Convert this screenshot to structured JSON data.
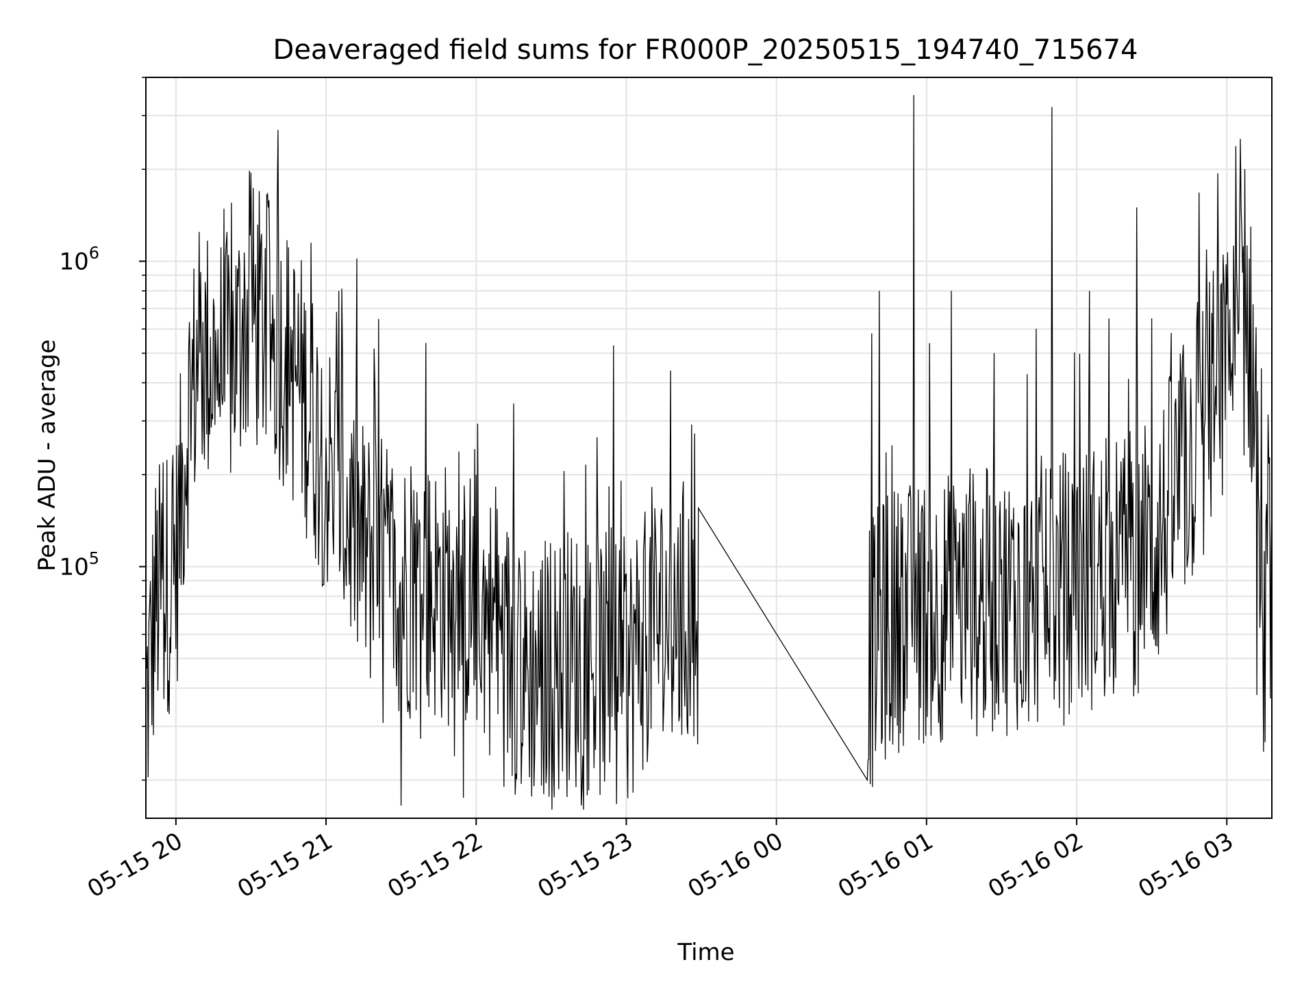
{
  "chart_data": {
    "type": "line",
    "title": "Deaveraged field sums for FR000P_20250515_194740_715674",
    "xlabel": "Time",
    "ylabel": "Peak ADU - average",
    "yscale": "log",
    "grid": true,
    "line_color": "#000000",
    "xlim": [
      "2025-05-15 19:48",
      "2025-05-16 03:18"
    ],
    "ylim": [
      15000,
      4000000
    ],
    "x_ticks": [
      "05-15 20",
      "05-15 21",
      "05-15 22",
      "05-15 23",
      "05-16 00",
      "05-16 01",
      "05-16 02",
      "05-16 03"
    ],
    "y_ticks": [
      {
        "base": "10",
        "exp": "5",
        "value": 100000
      },
      {
        "base": "10",
        "exp": "6",
        "value": 1000000
      }
    ],
    "series": [
      {
        "x_start": "2025-05-15 19:48",
        "x_end": "2025-05-16 03:18",
        "gap": [
          "2025-05-15 23:29",
          "2025-05-16 00:36"
        ],
        "anchors": [
          [
            "2025-05-15 19:48",
            30000
          ],
          [
            "2025-05-15 19:52",
            70000
          ],
          [
            "2025-05-15 20:00",
            90000
          ],
          [
            "2025-05-15 20:05",
            300000
          ],
          [
            "2025-05-15 20:10",
            450000
          ],
          [
            "2025-05-15 20:20",
            400000
          ],
          [
            "2025-05-15 20:30",
            600000
          ],
          [
            "2025-05-15 20:40",
            500000
          ],
          [
            "2025-05-15 20:50",
            350000
          ],
          [
            "2025-05-15 21:00",
            200000
          ],
          [
            "2025-05-15 21:15",
            100000
          ],
          [
            "2025-05-15 21:30",
            80000
          ],
          [
            "2025-05-15 22:00",
            70000
          ],
          [
            "2025-05-15 22:20",
            40000
          ],
          [
            "2025-05-15 22:40",
            45000
          ],
          [
            "2025-05-15 23:00",
            40000
          ],
          [
            "2025-05-15 23:10",
            60000
          ],
          [
            "2025-05-15 23:29",
            65000
          ],
          [
            "2025-05-16 00:36",
            43000
          ],
          [
            "2025-05-16 00:45",
            60000
          ],
          [
            "2025-05-16 01:00",
            65000
          ],
          [
            "2025-05-16 01:30",
            70000
          ],
          [
            "2025-05-16 02:00",
            80000
          ],
          [
            "2025-05-16 02:30",
            100000
          ],
          [
            "2025-05-16 02:45",
            200000
          ],
          [
            "2025-05-16 03:00",
            400000
          ],
          [
            "2025-05-16 03:08",
            600000
          ],
          [
            "2025-05-16 03:12",
            300000
          ],
          [
            "2025-05-16 03:14",
            40000
          ],
          [
            "2025-05-16 03:18",
            100000
          ]
        ],
        "spikes": [
          [
            "2025-05-15 20:30",
            1950000
          ],
          [
            "2025-05-15 20:37",
            1500000
          ],
          [
            "2025-05-15 20:54",
            1150000
          ],
          [
            "2025-05-15 21:05",
            800000
          ],
          [
            "2025-05-15 21:40",
            540000
          ],
          [
            "2025-05-15 22:55",
            530000
          ],
          [
            "2025-05-16 00:38",
            580000
          ],
          [
            "2025-05-16 00:41",
            800000
          ],
          [
            "2025-05-16 00:55",
            3500000
          ],
          [
            "2025-05-16 01:10",
            800000
          ],
          [
            "2025-05-16 01:27",
            500000
          ],
          [
            "2025-05-16 01:50",
            3200000
          ],
          [
            "2025-05-16 02:05",
            800000
          ],
          [
            "2025-05-16 02:24",
            1500000
          ],
          [
            "2025-05-16 02:30",
            650000
          ],
          [
            "2025-05-16 03:04",
            920000
          ]
        ],
        "dips": [
          [
            "2025-05-15 21:30",
            16500
          ],
          [
            "2025-05-15 21:55",
            17500
          ],
          [
            "2025-05-15 22:11",
            19000
          ],
          [
            "2025-05-15 22:27",
            18000
          ],
          [
            "2025-05-15 22:56",
            16700
          ],
          [
            "2025-05-16 03:12",
            38000
          ]
        ]
      }
    ]
  }
}
